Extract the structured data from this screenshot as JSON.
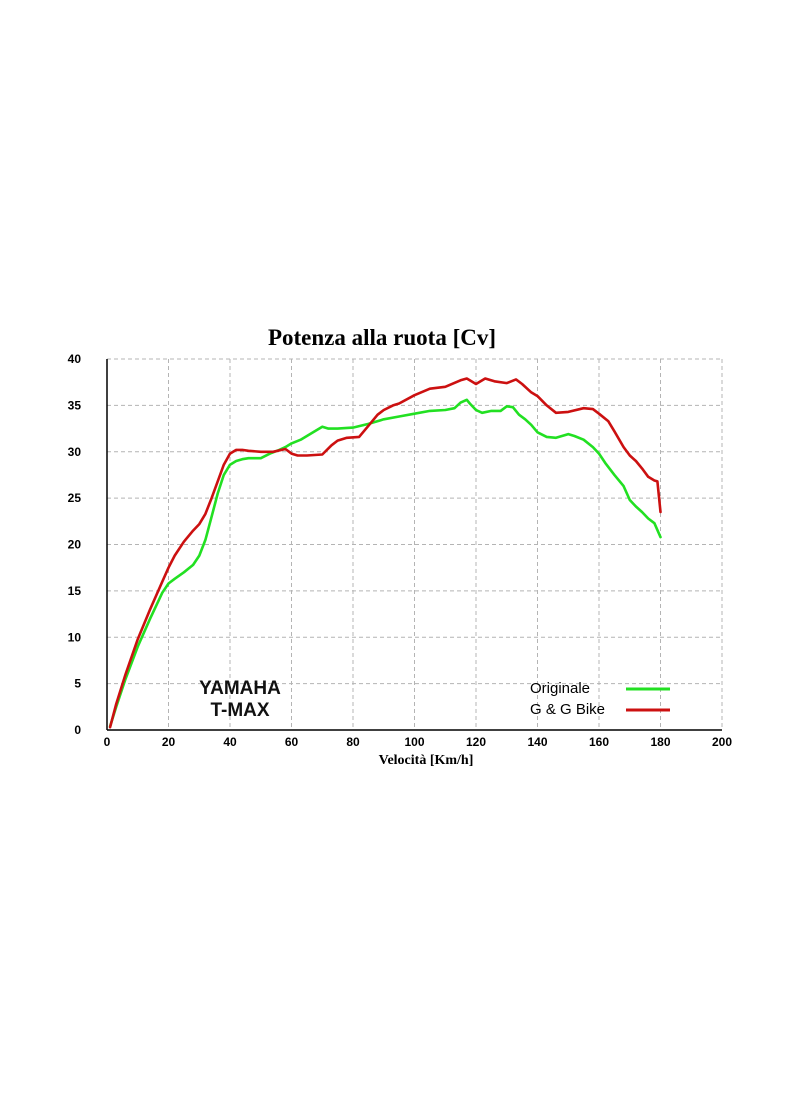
{
  "chart_data": {
    "type": "line",
    "title": "Potenza alla ruota [Cv]",
    "xlabel": "Velocità [Km/h]",
    "ylabel": "",
    "xlim": [
      0,
      200
    ],
    "ylim": [
      0,
      40
    ],
    "x_ticks": [
      0,
      20,
      40,
      60,
      80,
      100,
      120,
      140,
      160,
      180,
      200
    ],
    "y_ticks": [
      0,
      5,
      10,
      15,
      20,
      25,
      30,
      35,
      40
    ],
    "grid": true,
    "legend_position": "bottom-right",
    "annotations": [
      "YAMAHA",
      "T-MAX"
    ],
    "series": [
      {
        "name": "Originale",
        "color": "#22e022",
        "x": [
          1,
          3,
          6,
          10,
          14,
          18,
          20,
          22,
          25,
          28,
          30,
          32,
          34,
          36,
          38,
          40,
          42,
          44,
          46,
          50,
          53,
          56,
          58,
          60,
          63,
          66,
          70,
          72,
          75,
          80,
          85,
          90,
          95,
          100,
          105,
          110,
          113,
          115,
          117,
          118,
          120,
          122,
          125,
          128,
          130,
          132,
          134,
          136,
          138,
          140,
          143,
          146,
          150,
          152,
          155,
          158,
          160,
          162,
          165,
          168,
          170,
          172,
          174,
          176,
          178,
          180
        ],
        "y": [
          0.4,
          2.5,
          5.5,
          9,
          12,
          14.8,
          15.8,
          16.3,
          17,
          17.8,
          18.8,
          20.5,
          23,
          25.5,
          27.5,
          28.6,
          29,
          29.2,
          29.3,
          29.3,
          29.8,
          30.2,
          30.5,
          30.9,
          31.3,
          31.9,
          32.7,
          32.5,
          32.5,
          32.6,
          33,
          33.5,
          33.8,
          34.1,
          34.4,
          34.5,
          34.7,
          35.3,
          35.6,
          35.2,
          34.5,
          34.2,
          34.4,
          34.4,
          34.9,
          34.8,
          34,
          33.5,
          32.9,
          32.1,
          31.6,
          31.5,
          31.9,
          31.7,
          31.3,
          30.5,
          29.8,
          28.8,
          27.5,
          26.3,
          24.8,
          24.1,
          23.5,
          22.8,
          22.3,
          20.8
        ]
      },
      {
        "name": "G & G Bike",
        "color": "#cc1010",
        "x": [
          1,
          3,
          6,
          10,
          14,
          18,
          20,
          22,
          25,
          28,
          30,
          32,
          34,
          36,
          38,
          40,
          42,
          44,
          46,
          50,
          54,
          58,
          60,
          62,
          65,
          70,
          73,
          75,
          78,
          82,
          85,
          88,
          90,
          93,
          95,
          100,
          105,
          110,
          115,
          117,
          120,
          123,
          126,
          130,
          133,
          135,
          138,
          140,
          143,
          146,
          150,
          155,
          158,
          160,
          163,
          165,
          168,
          170,
          172,
          174,
          176,
          178,
          179,
          180
        ],
        "y": [
          0.3,
          2.8,
          6,
          9.8,
          13,
          16,
          17.5,
          18.8,
          20.3,
          21.5,
          22.2,
          23.3,
          25,
          26.8,
          28.6,
          29.8,
          30.2,
          30.2,
          30.1,
          30,
          30,
          30.3,
          29.8,
          29.6,
          29.6,
          29.7,
          30.7,
          31.2,
          31.5,
          31.6,
          32.8,
          34,
          34.5,
          35,
          35.2,
          36.1,
          36.8,
          37,
          37.7,
          37.9,
          37.3,
          37.9,
          37.6,
          37.4,
          37.8,
          37.3,
          36.4,
          36,
          35,
          34.2,
          34.3,
          34.7,
          34.6,
          34.1,
          33.3,
          32.2,
          30.5,
          29.6,
          29,
          28.2,
          27.3,
          26.9,
          26.8,
          23.5
        ]
      }
    ]
  }
}
